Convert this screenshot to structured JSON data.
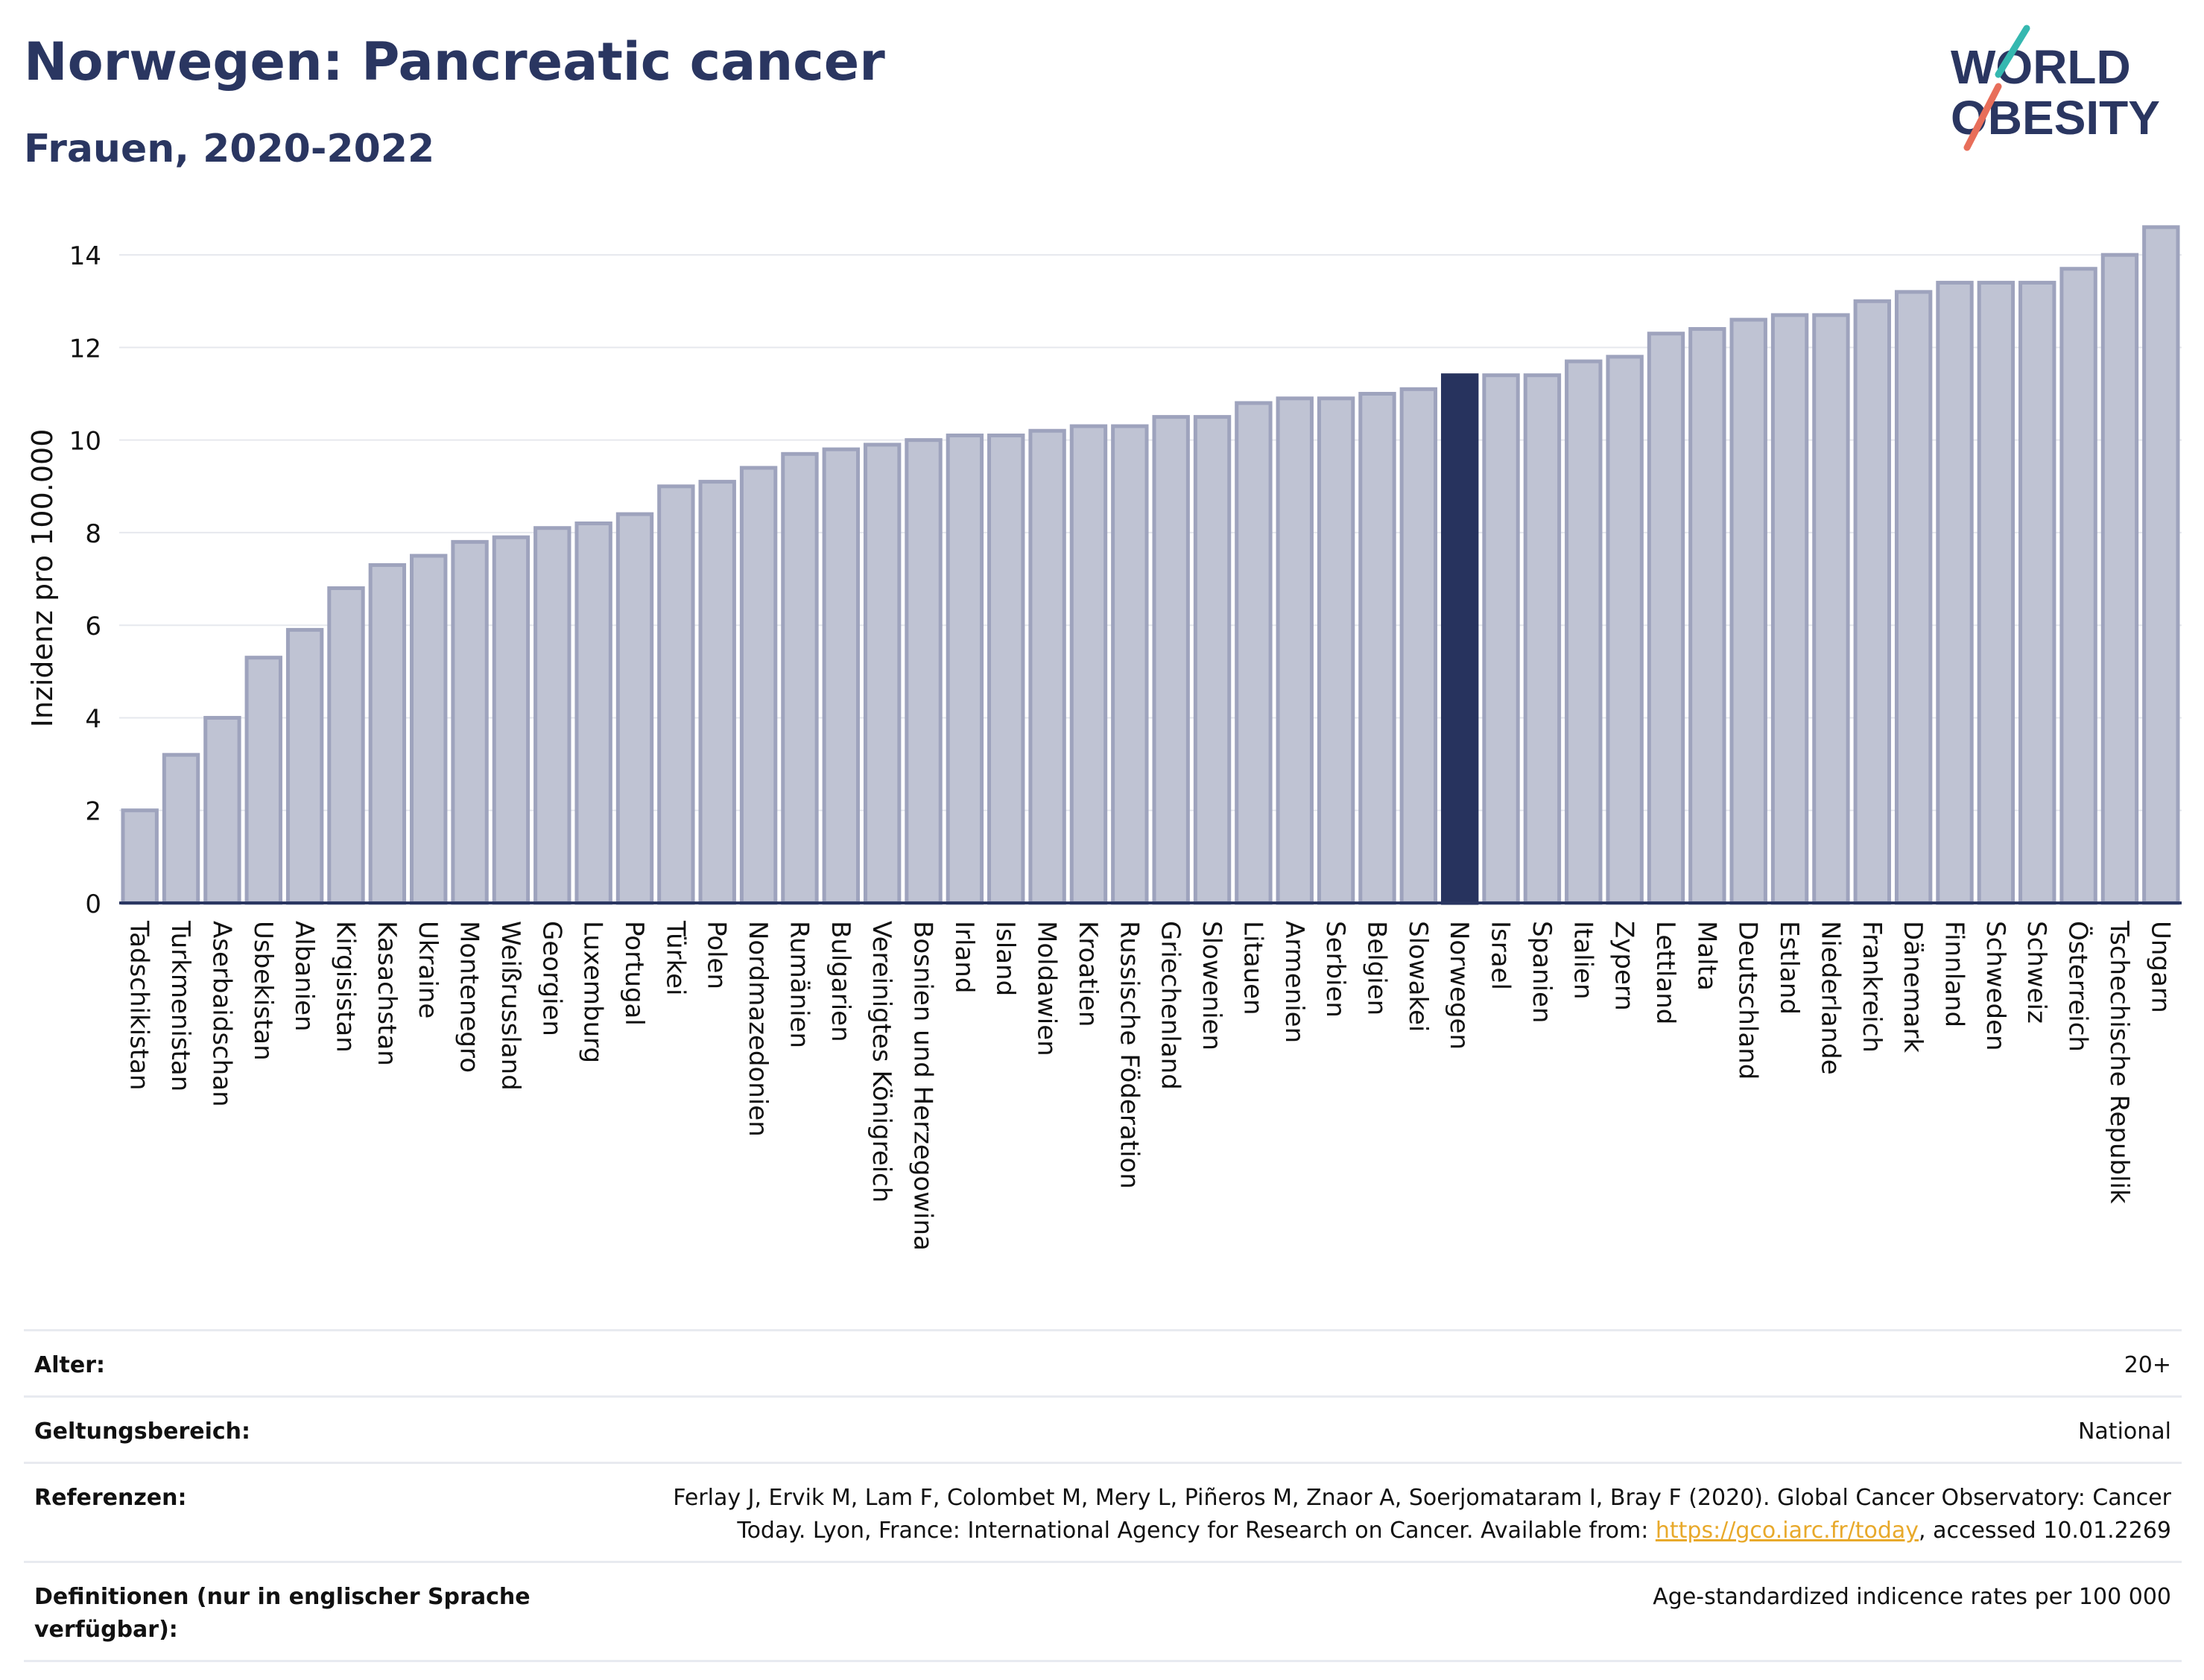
{
  "header": {
    "title": "Norwegen: Pancreatic cancer",
    "subtitle": "Frauen, 2020-2022"
  },
  "logo": {
    "line1": "WORLD",
    "line2": "OBESITY"
  },
  "colors": {
    "highlight": "#27335e",
    "bar": "#bfc3d3",
    "bar_edge": "#9ea3bd",
    "title": "#2a3661"
  },
  "chart_data": {
    "type": "bar",
    "ylabel": "Inzidenz pro 100.000",
    "ylim": [
      0,
      15
    ],
    "yticks": [
      0,
      2,
      4,
      6,
      8,
      10,
      12,
      14
    ],
    "grid": true,
    "highlight": "Norwegen",
    "categories": [
      "Tadschikistan",
      "Turkmenistan",
      "Aserbaidschan",
      "Usbekistan",
      "Albanien",
      "Kirgisistan",
      "Kasachstan",
      "Ukraine",
      "Montenegro",
      "Weißrussland",
      "Georgien",
      "Luxemburg",
      "Portugal",
      "Türkei",
      "Polen",
      "Nordmazedonien",
      "Rumänien",
      "Bulgarien",
      "Vereinigtes Königreich",
      "Bosnien und Herzegowina",
      "Irland",
      "Island",
      "Moldawien",
      "Kroatien",
      "Russische Föderation",
      "Griechenland",
      "Slowenien",
      "Litauen",
      "Armenien",
      "Serbien",
      "Belgien",
      "Slowakei",
      "Norwegen",
      "Israel",
      "Spanien",
      "Italien",
      "Zypern",
      "Lettland",
      "Malta",
      "Deutschland",
      "Estland",
      "Niederlande",
      "Frankreich",
      "Dänemark",
      "Finnland",
      "Schweden",
      "Schweiz",
      "Österreich",
      "Tschechische Republik",
      "Ungarn"
    ],
    "values": [
      2.0,
      3.2,
      4.0,
      5.3,
      5.9,
      6.8,
      7.3,
      7.5,
      7.8,
      7.9,
      8.1,
      8.2,
      8.4,
      9.0,
      9.1,
      9.4,
      9.7,
      9.8,
      9.9,
      10.0,
      10.1,
      10.1,
      10.2,
      10.3,
      10.3,
      10.5,
      10.5,
      10.8,
      10.9,
      10.9,
      11.0,
      11.1,
      11.4,
      11.4,
      11.4,
      11.7,
      11.8,
      12.3,
      12.4,
      12.6,
      12.7,
      12.7,
      13.0,
      13.2,
      13.4,
      13.4,
      13.4,
      13.7,
      14.0,
      14.6
    ]
  },
  "meta": {
    "age_label": "Alter:",
    "age_value": "20+",
    "scope_label": "Geltungsbereich:",
    "scope_value": "National",
    "ref_label": "Referenzen:",
    "ref_text_1": "Ferlay J, Ervik M, Lam F, Colombet M, Mery L, Piñeros M, Znaor A, Soerjomataram I, Bray F (2020). Global Cancer Observatory: Cancer",
    "ref_text_2": "Today. Lyon, France: International Agency for Research on Cancer. Available from: ",
    "ref_link": "https://gco.iarc.fr/today",
    "ref_text_3": ", accessed 10.01.2269",
    "def_label": "Definitionen (nur in englischer Sprache verfügbar):",
    "def_value": "Age-standardized indicence rates per 100 000"
  }
}
